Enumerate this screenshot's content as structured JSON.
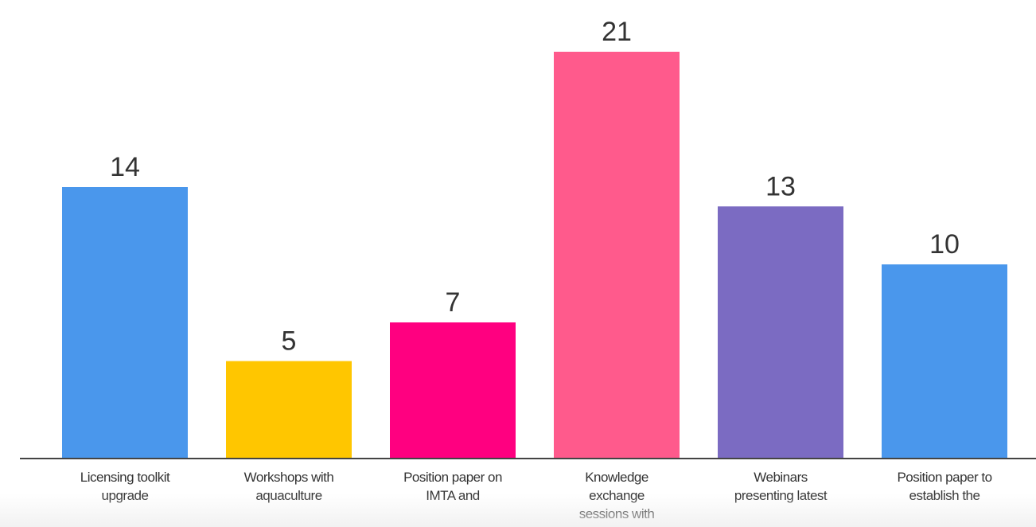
{
  "chart_data": {
    "type": "bar",
    "categories": [
      "Licensing toolkit upgrade",
      "Workshops with aquaculture",
      "Position paper on IMTA and",
      "Knowledge exchange sessions with",
      "Webinars presenting latest",
      "Position paper to establish the"
    ],
    "values": [
      14,
      5,
      7,
      21,
      13,
      10
    ],
    "colors": [
      "#4a97ec",
      "#ffc600",
      "#ff0080",
      "#ff5a8c",
      "#7b6bc2",
      "#4a97ec"
    ]
  }
}
